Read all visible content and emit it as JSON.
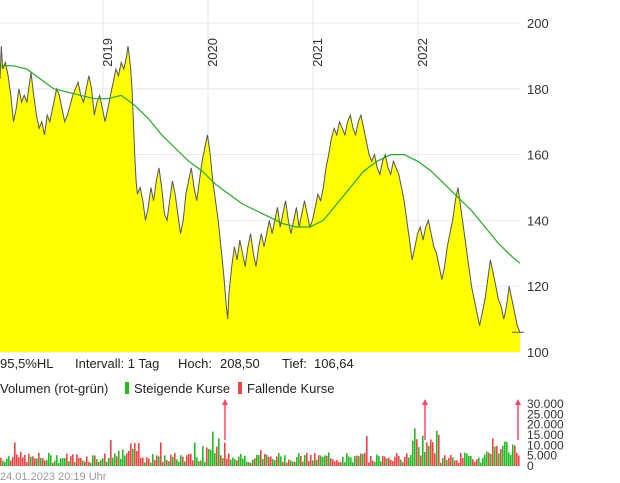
{
  "chart_data": {
    "type": "area",
    "y_ticks": [
      100,
      120,
      140,
      160,
      180,
      200
    ],
    "ylim": [
      100,
      207
    ],
    "year_labels": [
      "2019",
      "2020",
      "2021",
      "2022"
    ],
    "price_series": {
      "color": "#555555",
      "fill": "#ffff00",
      "points": [
        [
          0,
          183
        ],
        [
          1,
          193
        ],
        [
          2,
          186
        ],
        [
          4,
          188
        ],
        [
          6,
          184
        ],
        [
          8,
          178
        ],
        [
          10,
          170
        ],
        [
          12,
          174
        ],
        [
          14,
          180
        ],
        [
          16,
          176
        ],
        [
          18,
          178
        ],
        [
          20,
          176
        ],
        [
          22,
          182
        ],
        [
          23,
          185
        ],
        [
          25,
          178
        ],
        [
          27,
          172
        ],
        [
          29,
          168
        ],
        [
          31,
          170
        ],
        [
          33,
          166
        ],
        [
          35,
          172
        ],
        [
          37,
          170
        ],
        [
          40,
          176
        ],
        [
          42,
          180
        ],
        [
          44,
          178
        ],
        [
          46,
          174
        ],
        [
          48,
          170
        ],
        [
          50,
          172
        ],
        [
          52,
          175
        ],
        [
          54,
          178
        ],
        [
          56,
          180
        ],
        [
          58,
          182
        ],
        [
          60,
          178
        ],
        [
          62,
          176
        ],
        [
          64,
          180
        ],
        [
          66,
          184
        ],
        [
          68,
          180
        ],
        [
          70,
          172
        ],
        [
          72,
          176
        ],
        [
          74,
          178
        ],
        [
          76,
          174
        ],
        [
          78,
          170
        ],
        [
          80,
          174
        ],
        [
          82,
          178
        ],
        [
          84,
          182
        ],
        [
          86,
          186
        ],
        [
          88,
          184
        ],
        [
          90,
          188
        ],
        [
          92,
          186
        ],
        [
          94,
          190
        ],
        [
          95,
          193
        ],
        [
          96,
          190
        ],
        [
          97,
          186
        ],
        [
          98,
          180
        ],
        [
          99,
          170
        ],
        [
          100,
          160
        ],
        [
          101,
          152
        ],
        [
          102,
          148
        ],
        [
          104,
          150
        ],
        [
          106,
          146
        ],
        [
          108,
          140
        ],
        [
          110,
          144
        ],
        [
          112,
          150
        ],
        [
          114,
          146
        ],
        [
          116,
          152
        ],
        [
          118,
          156
        ],
        [
          120,
          150
        ],
        [
          122,
          142
        ],
        [
          124,
          140
        ],
        [
          126,
          146
        ],
        [
          128,
          152
        ],
        [
          130,
          148
        ],
        [
          132,
          142
        ],
        [
          134,
          136
        ],
        [
          136,
          140
        ],
        [
          138,
          148
        ],
        [
          140,
          152
        ],
        [
          142,
          156
        ],
        [
          144,
          150
        ],
        [
          146,
          146
        ],
        [
          148,
          152
        ],
        [
          150,
          158
        ],
        [
          152,
          162
        ],
        [
          154,
          166
        ],
        [
          156,
          160
        ],
        [
          158,
          152
        ],
        [
          160,
          146
        ],
        [
          162,
          140
        ],
        [
          164,
          132
        ],
        [
          166,
          124
        ],
        [
          168,
          114
        ],
        [
          169,
          110
        ],
        [
          170,
          118
        ],
        [
          172,
          126
        ],
        [
          174,
          132
        ],
        [
          176,
          128
        ],
        [
          178,
          134
        ],
        [
          180,
          130
        ],
        [
          182,
          126
        ],
        [
          184,
          132
        ],
        [
          186,
          136
        ],
        [
          188,
          130
        ],
        [
          190,
          126
        ],
        [
          192,
          132
        ],
        [
          194,
          136
        ],
        [
          196,
          132
        ],
        [
          198,
          136
        ],
        [
          200,
          140
        ],
        [
          202,
          136
        ],
        [
          204,
          140
        ],
        [
          206,
          144
        ],
        [
          208,
          138
        ],
        [
          210,
          142
        ],
        [
          212,
          146
        ],
        [
          214,
          140
        ],
        [
          216,
          136
        ],
        [
          218,
          140
        ],
        [
          220,
          144
        ],
        [
          222,
          138
        ],
        [
          224,
          142
        ],
        [
          226,
          146
        ],
        [
          228,
          142
        ],
        [
          230,
          138
        ],
        [
          232,
          140
        ],
        [
          234,
          144
        ],
        [
          236,
          148
        ],
        [
          238,
          146
        ],
        [
          240,
          150
        ],
        [
          242,
          156
        ],
        [
          244,
          160
        ],
        [
          246,
          165
        ],
        [
          248,
          168
        ],
        [
          250,
          166
        ],
        [
          252,
          170
        ],
        [
          254,
          168
        ],
        [
          256,
          166
        ],
        [
          258,
          170
        ],
        [
          260,
          172
        ],
        [
          262,
          168
        ],
        [
          264,
          166
        ],
        [
          266,
          170
        ],
        [
          268,
          172
        ],
        [
          270,
          168
        ],
        [
          272,
          164
        ],
        [
          274,
          160
        ],
        [
          276,
          158
        ],
        [
          278,
          160
        ],
        [
          280,
          156
        ],
        [
          282,
          154
        ],
        [
          284,
          158
        ],
        [
          286,
          160
        ],
        [
          288,
          156
        ],
        [
          290,
          154
        ],
        [
          292,
          158
        ],
        [
          294,
          156
        ],
        [
          296,
          154
        ],
        [
          298,
          150
        ],
        [
          300,
          146
        ],
        [
          302,
          140
        ],
        [
          304,
          134
        ],
        [
          306,
          128
        ],
        [
          308,
          132
        ],
        [
          310,
          136
        ],
        [
          312,
          138
        ],
        [
          314,
          134
        ],
        [
          316,
          138
        ],
        [
          318,
          140
        ],
        [
          320,
          136
        ],
        [
          322,
          132
        ],
        [
          324,
          130
        ],
        [
          326,
          126
        ],
        [
          328,
          122
        ],
        [
          330,
          126
        ],
        [
          332,
          132
        ],
        [
          334,
          136
        ],
        [
          336,
          140
        ],
        [
          338,
          146
        ],
        [
          340,
          150
        ],
        [
          342,
          144
        ],
        [
          344,
          138
        ],
        [
          346,
          132
        ],
        [
          348,
          126
        ],
        [
          350,
          120
        ],
        [
          352,
          116
        ],
        [
          354,
          112
        ],
        [
          356,
          108
        ],
        [
          358,
          112
        ],
        [
          360,
          116
        ],
        [
          362,
          122
        ],
        [
          364,
          128
        ],
        [
          366,
          124
        ],
        [
          368,
          120
        ],
        [
          370,
          116
        ],
        [
          372,
          114
        ],
        [
          374,
          110
        ],
        [
          376,
          114
        ],
        [
          378,
          120
        ],
        [
          380,
          116
        ],
        [
          382,
          112
        ],
        [
          384,
          108
        ],
        [
          386,
          106
        ]
      ]
    },
    "moving_average": {
      "color": "#22aa22",
      "points": [
        [
          0,
          187
        ],
        [
          10,
          187
        ],
        [
          20,
          186
        ],
        [
          30,
          183
        ],
        [
          40,
          180
        ],
        [
          50,
          179
        ],
        [
          60,
          178
        ],
        [
          70,
          177
        ],
        [
          80,
          177
        ],
        [
          90,
          178
        ],
        [
          100,
          175
        ],
        [
          110,
          171
        ],
        [
          120,
          166
        ],
        [
          130,
          162
        ],
        [
          140,
          158
        ],
        [
          150,
          155
        ],
        [
          160,
          151
        ],
        [
          170,
          148
        ],
        [
          180,
          145
        ],
        [
          190,
          143
        ],
        [
          200,
          141
        ],
        [
          210,
          139
        ],
        [
          220,
          138
        ],
        [
          230,
          138
        ],
        [
          240,
          140
        ],
        [
          250,
          145
        ],
        [
          260,
          150
        ],
        [
          270,
          155
        ],
        [
          280,
          158
        ],
        [
          290,
          160
        ],
        [
          300,
          160
        ],
        [
          310,
          158
        ],
        [
          320,
          155
        ],
        [
          330,
          151
        ],
        [
          340,
          147
        ],
        [
          350,
          143
        ],
        [
          360,
          138
        ],
        [
          370,
          133
        ],
        [
          380,
          129
        ],
        [
          386,
          127
        ]
      ]
    },
    "last_value": 106,
    "volume": {
      "y_ticks": [
        0,
        5000,
        10000,
        15000,
        20000,
        25000,
        30000
      ],
      "y_tick_labels": [
        "0",
        "5.000",
        "10.000",
        "15.000",
        "20.000",
        "25.000",
        "30.000"
      ],
      "ylim": [
        0,
        31000
      ],
      "up_color": "#22bb22",
      "down_color": "#ee4444",
      "spike_marker_color": "#ff4466"
    }
  },
  "info_bar": {
    "scale_label": "95,5%HL",
    "interval_label": "Intervall: 1 Tag",
    "high_label": "Hoch:",
    "high_value": "208,50",
    "low_label": "Tief:",
    "low_value": "106,64"
  },
  "volume_legend": {
    "title": "Volumen (rot-grün)",
    "rising": "Steigende Kurse",
    "falling": "Fallende Kurse"
  },
  "footer": {
    "timestamp": "24.01.2023 20:19 Uhr"
  }
}
